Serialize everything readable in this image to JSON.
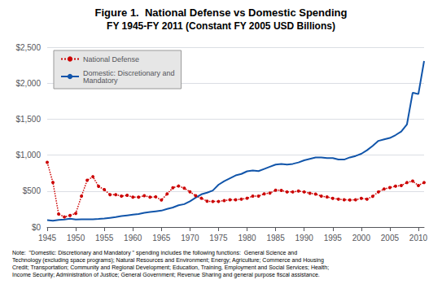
{
  "chart_data": {
    "type": "line",
    "title": "Figure 1.  National Defense vs Domestic Spending",
    "subtitle": "FY 1945-FY 2011 (Constant FY 2005 USD Billions)",
    "note": "Note:  \"Domestic: Discretionary and Mandatory \" spending includes the following functions:  General Science and\nTechnology (excluding space programs); Natural Resources and Environment; Energy; Agriculture; Commerce and Housing\nCredit; Transportation; Community and Regional Development; Education, Training, Employment and Social Services; Health;\nIncome Security; Administration of Justice; General Government; Revenue Sharing and general purpose fiscal assistance.",
    "x": [
      1945,
      1946,
      1947,
      1948,
      1949,
      1950,
      1951,
      1952,
      1953,
      1954,
      1955,
      1956,
      1957,
      1958,
      1959,
      1960,
      1961,
      1962,
      1963,
      1964,
      1965,
      1966,
      1967,
      1968,
      1969,
      1970,
      1971,
      1972,
      1973,
      1974,
      1975,
      1976,
      1977,
      1978,
      1979,
      1980,
      1981,
      1982,
      1983,
      1984,
      1985,
      1986,
      1987,
      1988,
      1989,
      1990,
      1991,
      1992,
      1993,
      1994,
      1995,
      1996,
      1997,
      1998,
      1999,
      2000,
      2001,
      2002,
      2003,
      2004,
      2005,
      2006,
      2007,
      2008,
      2009,
      2010,
      2011
    ],
    "series": [
      {
        "name": "National Defense",
        "color": "#cc0000",
        "marker": "circle",
        "line_style": "dotted",
        "values": [
          900,
          620,
          180,
          140,
          160,
          190,
          430,
          650,
          700,
          565,
          520,
          450,
          450,
          430,
          440,
          415,
          415,
          435,
          415,
          420,
          375,
          460,
          545,
          570,
          540,
          490,
          435,
          400,
          358,
          355,
          355,
          368,
          378,
          378,
          388,
          400,
          430,
          430,
          462,
          472,
          512,
          510,
          488,
          488,
          500,
          488,
          470,
          458,
          430,
          418,
          398,
          388,
          378,
          377,
          378,
          398,
          388,
          428,
          488,
          528,
          548,
          568,
          578,
          618,
          638,
          578,
          618
        ]
      },
      {
        "name": "Domestic: Discretionary and\nMandatory",
        "color": "#1155aa",
        "marker": "none",
        "line_style": "solid",
        "values": [
          95,
          88,
          100,
          105,
          115,
          105,
          108,
          108,
          108,
          112,
          118,
          128,
          138,
          152,
          162,
          172,
          182,
          198,
          208,
          218,
          228,
          252,
          272,
          302,
          318,
          358,
          408,
          455,
          478,
          508,
          588,
          638,
          678,
          718,
          738,
          775,
          785,
          778,
          808,
          838,
          868,
          878,
          868,
          878,
          898,
          928,
          948,
          968,
          968,
          958,
          958,
          938,
          938,
          968,
          988,
          1018,
          1068,
          1128,
          1198,
          1218,
          1238,
          1278,
          1328,
          1428,
          1868,
          1848,
          2308
        ]
      }
    ],
    "xlim": [
      1945,
      2011
    ],
    "xticks": [
      1945,
      1950,
      1955,
      1960,
      1965,
      1970,
      1975,
      1980,
      1985,
      1990,
      1995,
      2000,
      2005,
      2010
    ],
    "ylim": [
      0,
      2500
    ],
    "yticks": [
      {
        "value": 0,
        "label": "$0"
      },
      {
        "value": 500,
        "label": "$500"
      },
      {
        "value": 1000,
        "label": "$1,000"
      },
      {
        "value": 1500,
        "label": "$1,500"
      },
      {
        "value": 2000,
        "label": "$2,000"
      },
      {
        "value": 2500,
        "label": "$2,500"
      }
    ],
    "grid": true,
    "legend": "upper left"
  }
}
